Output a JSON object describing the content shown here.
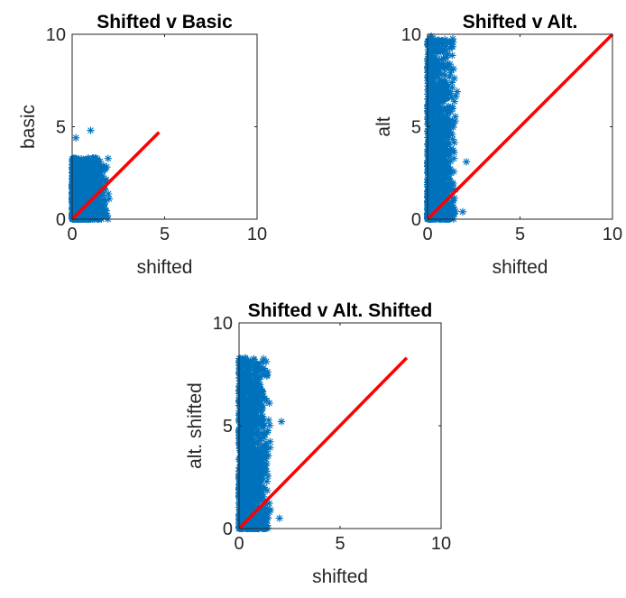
{
  "style": {
    "marker_color": "#0072BD",
    "line_color": "#FF0000",
    "axes_color": "#262626",
    "marker": "asterisk"
  },
  "chart_data": [
    {
      "type": "scatter",
      "title": "Shifted v Basic",
      "xlabel": "shifted",
      "ylabel": "basic",
      "xlim": [
        0,
        10
      ],
      "ylim": [
        0,
        10
      ],
      "xticks": [
        0,
        5,
        10
      ],
      "yticks": [
        0,
        5,
        10
      ],
      "xtick_labels": [
        "0",
        "5",
        "10"
      ],
      "ytick_labels": [
        "0",
        "5",
        "10"
      ],
      "grid": false,
      "scatter_cloud": {
        "x_range": [
          0,
          2.0
        ],
        "y_range": [
          0,
          3.3
        ],
        "approx_count": 1200
      },
      "outliers": [
        [
          1.0,
          4.8
        ],
        [
          0.2,
          4.4
        ],
        [
          1.1,
          3.3
        ],
        [
          2.0,
          1.1
        ],
        [
          1.9,
          0.2
        ],
        [
          1.4,
          2.2
        ]
      ],
      "line": {
        "x": [
          0,
          4.7
        ],
        "y": [
          0,
          4.7
        ]
      }
    },
    {
      "type": "scatter",
      "title": "Shifted v Alt.",
      "xlabel": "shifted",
      "ylabel": "alt",
      "xlim": [
        0,
        10
      ],
      "ylim": [
        0,
        10
      ],
      "xticks": [
        0,
        5,
        10
      ],
      "yticks": [
        0,
        5,
        10
      ],
      "xtick_labels": [
        "0",
        "5",
        "10"
      ],
      "ytick_labels": [
        "0",
        "5",
        "10"
      ],
      "grid": false,
      "scatter_cloud": {
        "x_range": [
          0,
          1.6
        ],
        "y_range": [
          0,
          9.8
        ],
        "approx_count": 1200
      },
      "outliers": [
        [
          2.1,
          3.1
        ],
        [
          1.2,
          9.5
        ],
        [
          0.2,
          9.9
        ],
        [
          1.9,
          0.4
        ],
        [
          1.6,
          6.9
        ]
      ],
      "line": {
        "x": [
          0,
          10
        ],
        "y": [
          0,
          10
        ]
      }
    },
    {
      "type": "scatter",
      "title": "Shifted v Alt. Shifted",
      "xlabel": "shifted",
      "ylabel": "alt. shifted",
      "xlim": [
        0,
        10
      ],
      "ylim": [
        0,
        10
      ],
      "xticks": [
        0,
        5,
        10
      ],
      "yticks": [
        0,
        5,
        10
      ],
      "xtick_labels": [
        "0",
        "5",
        "10"
      ],
      "ytick_labels": [
        "0",
        "5",
        "10"
      ],
      "grid": false,
      "scatter_cloud": {
        "x_range": [
          0,
          1.6
        ],
        "y_range": [
          0,
          8.3
        ],
        "approx_count": 1200
      },
      "outliers": [
        [
          2.1,
          5.2
        ],
        [
          1.2,
          7.8
        ],
        [
          0.3,
          8.3
        ],
        [
          2.0,
          0.5
        ],
        [
          1.5,
          6.1
        ]
      ],
      "line": {
        "x": [
          0,
          8.3
        ],
        "y": [
          0,
          8.3
        ]
      }
    }
  ]
}
